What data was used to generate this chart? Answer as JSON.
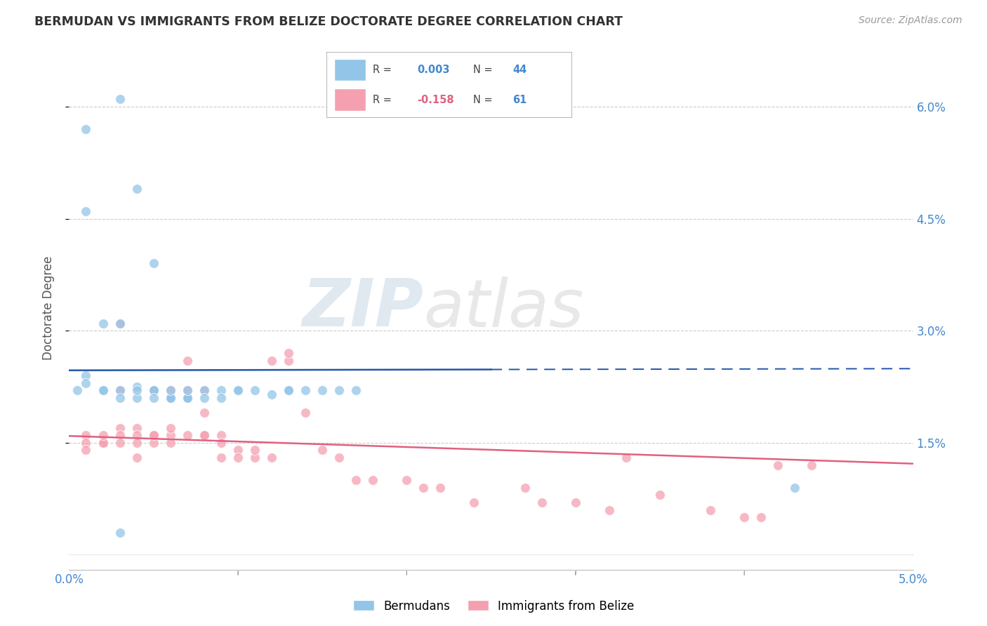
{
  "title": "BERMUDAN VS IMMIGRANTS FROM BELIZE DOCTORATE DEGREE CORRELATION CHART",
  "source": "Source: ZipAtlas.com",
  "ylabel": "Doctorate Degree",
  "xlim": [
    0.0,
    0.05
  ],
  "ylim": [
    -0.002,
    0.068
  ],
  "color_blue": "#92C5E8",
  "color_pink": "#F4A0B0",
  "line_blue": "#2255AA",
  "line_pink": "#E06080",
  "background_color": "#FFFFFF",
  "watermark_zip": "ZIP",
  "watermark_atlas": "atlas",
  "blue_r": "0.003",
  "blue_n": "44",
  "pink_r": "-0.158",
  "pink_n": "61",
  "blue_x": [
    0.001,
    0.003,
    0.004,
    0.005,
    0.006,
    0.007,
    0.0005,
    0.001,
    0.001,
    0.002,
    0.002,
    0.003,
    0.003,
    0.004,
    0.004,
    0.004,
    0.005,
    0.005,
    0.005,
    0.006,
    0.006,
    0.006,
    0.007,
    0.007,
    0.007,
    0.008,
    0.008,
    0.009,
    0.009,
    0.01,
    0.01,
    0.011,
    0.012,
    0.013,
    0.013,
    0.014,
    0.015,
    0.016,
    0.002,
    0.003,
    0.001,
    0.017,
    0.043,
    0.003
  ],
  "blue_y": [
    0.057,
    0.061,
    0.049,
    0.039,
    0.021,
    0.021,
    0.022,
    0.024,
    0.023,
    0.022,
    0.022,
    0.022,
    0.021,
    0.021,
    0.0225,
    0.022,
    0.022,
    0.022,
    0.021,
    0.021,
    0.021,
    0.022,
    0.021,
    0.021,
    0.022,
    0.022,
    0.021,
    0.022,
    0.021,
    0.022,
    0.022,
    0.022,
    0.0215,
    0.022,
    0.022,
    0.022,
    0.022,
    0.022,
    0.031,
    0.031,
    0.046,
    0.022,
    0.009,
    0.003
  ],
  "pink_x": [
    0.001,
    0.001,
    0.001,
    0.002,
    0.002,
    0.002,
    0.003,
    0.003,
    0.003,
    0.003,
    0.004,
    0.004,
    0.004,
    0.005,
    0.005,
    0.005,
    0.006,
    0.006,
    0.006,
    0.007,
    0.007,
    0.008,
    0.008,
    0.008,
    0.009,
    0.009,
    0.01,
    0.01,
    0.011,
    0.011,
    0.012,
    0.012,
    0.013,
    0.013,
    0.014,
    0.015,
    0.016,
    0.017,
    0.018,
    0.02,
    0.021,
    0.022,
    0.024,
    0.027,
    0.028,
    0.03,
    0.032,
    0.033,
    0.035,
    0.038,
    0.04,
    0.041,
    0.042,
    0.044,
    0.003,
    0.004,
    0.005,
    0.006,
    0.007,
    0.008,
    0.009
  ],
  "pink_y": [
    0.016,
    0.015,
    0.014,
    0.015,
    0.015,
    0.016,
    0.017,
    0.016,
    0.015,
    0.031,
    0.017,
    0.016,
    0.015,
    0.016,
    0.015,
    0.016,
    0.016,
    0.015,
    0.017,
    0.016,
    0.026,
    0.016,
    0.016,
    0.019,
    0.016,
    0.015,
    0.014,
    0.013,
    0.013,
    0.014,
    0.013,
    0.026,
    0.026,
    0.027,
    0.019,
    0.014,
    0.013,
    0.01,
    0.01,
    0.01,
    0.009,
    0.009,
    0.007,
    0.009,
    0.007,
    0.007,
    0.006,
    0.013,
    0.008,
    0.006,
    0.005,
    0.005,
    0.012,
    0.012,
    0.022,
    0.013,
    0.022,
    0.022,
    0.022,
    0.022,
    0.013
  ]
}
